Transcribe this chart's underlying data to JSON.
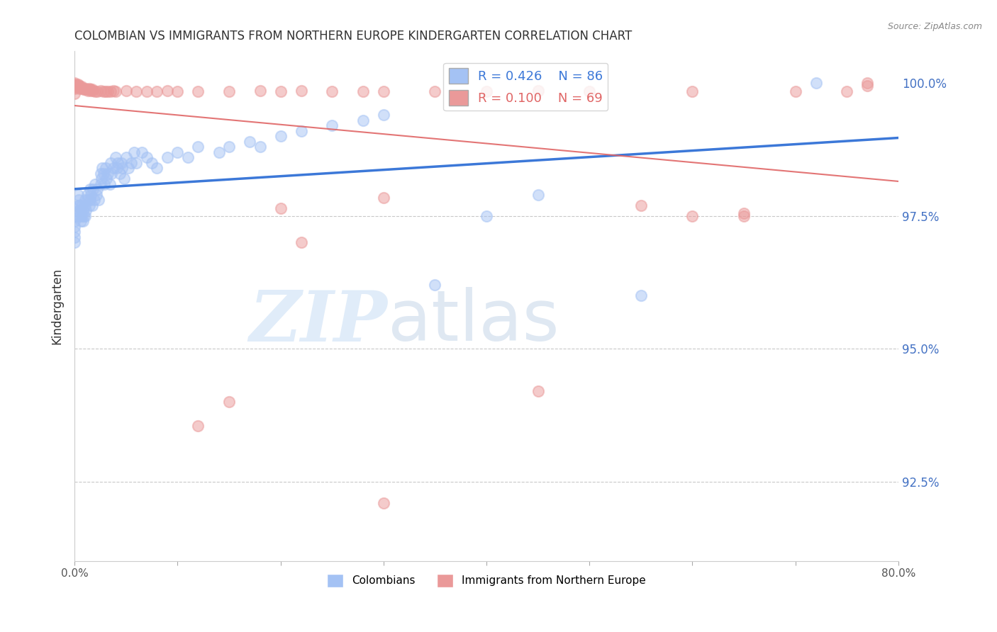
{
  "title": "COLOMBIAN VS IMMIGRANTS FROM NORTHERN EUROPE KINDERGARTEN CORRELATION CHART",
  "source": "Source: ZipAtlas.com",
  "ylabel": "Kindergarten",
  "xlim": [
    0.0,
    0.8
  ],
  "ylim": [
    0.91,
    1.006
  ],
  "ytick_vals": [
    0.925,
    0.95,
    0.975,
    1.0
  ],
  "ytick_labels": [
    "92.5%",
    "95.0%",
    "97.5%",
    "100.0%"
  ],
  "blue_color": "#a4c2f4",
  "pink_color": "#ea9999",
  "blue_line_color": "#3c78d8",
  "pink_line_color": "#e06666",
  "blue_R": 0.426,
  "blue_N": 86,
  "pink_R": 0.1,
  "pink_N": 69,
  "colombians_label": "Colombians",
  "immigrants_label": "Immigrants from Northern Europe",
  "blue_x": [
    0.0,
    0.0,
    0.0,
    0.0,
    0.0,
    0.0,
    0.003,
    0.003,
    0.004,
    0.004,
    0.005,
    0.005,
    0.006,
    0.006,
    0.007,
    0.007,
    0.008,
    0.008,
    0.009,
    0.01,
    0.01,
    0.01,
    0.011,
    0.012,
    0.013,
    0.014,
    0.015,
    0.015,
    0.016,
    0.017,
    0.018,
    0.019,
    0.02,
    0.021,
    0.022,
    0.023,
    0.025,
    0.025,
    0.026,
    0.027,
    0.028,
    0.029,
    0.03,
    0.031,
    0.032,
    0.034,
    0.035,
    0.036,
    0.038,
    0.04,
    0.041,
    0.042,
    0.044,
    0.045,
    0.046,
    0.048,
    0.05,
    0.052,
    0.055,
    0.058,
    0.06,
    0.065,
    0.07,
    0.075,
    0.08,
    0.09,
    0.1,
    0.11,
    0.12,
    0.14,
    0.15,
    0.17,
    0.18,
    0.2,
    0.22,
    0.25,
    0.28,
    0.3,
    0.35,
    0.4,
    0.45,
    0.55,
    0.72
  ],
  "blue_y": [
    0.975,
    0.974,
    0.973,
    0.972,
    0.971,
    0.97,
    0.979,
    0.977,
    0.978,
    0.976,
    0.977,
    0.975,
    0.976,
    0.974,
    0.977,
    0.975,
    0.976,
    0.974,
    0.975,
    0.978,
    0.977,
    0.975,
    0.976,
    0.979,
    0.978,
    0.977,
    0.98,
    0.978,
    0.979,
    0.977,
    0.98,
    0.978,
    0.981,
    0.979,
    0.98,
    0.978,
    0.983,
    0.981,
    0.982,
    0.984,
    0.983,
    0.981,
    0.984,
    0.982,
    0.983,
    0.981,
    0.985,
    0.983,
    0.984,
    0.986,
    0.984,
    0.985,
    0.983,
    0.985,
    0.984,
    0.982,
    0.986,
    0.984,
    0.985,
    0.987,
    0.985,
    0.987,
    0.986,
    0.985,
    0.984,
    0.986,
    0.987,
    0.986,
    0.988,
    0.987,
    0.988,
    0.989,
    0.988,
    0.99,
    0.991,
    0.992,
    0.993,
    0.994,
    0.962,
    0.975,
    0.979,
    0.96,
    1.0
  ],
  "pink_x": [
    0.0,
    0.0,
    0.0,
    0.0,
    0.0,
    0.0,
    0.0,
    0.003,
    0.003,
    0.004,
    0.004,
    0.005,
    0.006,
    0.007,
    0.008,
    0.009,
    0.01,
    0.011,
    0.012,
    0.013,
    0.014,
    0.015,
    0.016,
    0.017,
    0.018,
    0.02,
    0.022,
    0.025,
    0.028,
    0.03,
    0.032,
    0.035,
    0.038,
    0.04,
    0.05,
    0.06,
    0.07,
    0.08,
    0.09,
    0.1,
    0.12,
    0.15,
    0.18,
    0.2,
    0.22,
    0.25,
    0.28,
    0.3,
    0.35,
    0.4,
    0.45,
    0.5,
    0.6,
    0.65,
    0.7,
    0.75,
    0.77,
    0.12,
    0.2,
    0.3,
    0.55,
    0.65,
    0.77,
    0.15,
    0.22,
    0.3,
    0.45,
    0.6
  ],
  "pink_y": [
    1.0,
    0.9998,
    0.9996,
    0.9994,
    0.9992,
    0.999,
    0.998,
    0.9998,
    0.9996,
    0.9994,
    0.9992,
    0.999,
    0.9992,
    0.9994,
    0.999,
    0.9988,
    0.9988,
    0.999,
    0.9988,
    0.9986,
    0.999,
    0.9988,
    0.9986,
    0.9988,
    0.9986,
    0.9985,
    0.9984,
    0.9986,
    0.9985,
    0.9984,
    0.9985,
    0.9984,
    0.9986,
    0.9985,
    0.9986,
    0.9985,
    0.9984,
    0.9985,
    0.9986,
    0.9984,
    0.9985,
    0.9984,
    0.9986,
    0.9985,
    0.9986,
    0.9985,
    0.9984,
    0.9985,
    0.9984,
    0.9985,
    0.9986,
    0.9985,
    0.9984,
    0.9755,
    0.9984,
    0.9985,
    1.0,
    0.9355,
    0.9765,
    0.9785,
    0.977,
    0.975,
    0.9995,
    0.94,
    0.97,
    0.921,
    0.942,
    0.975
  ]
}
